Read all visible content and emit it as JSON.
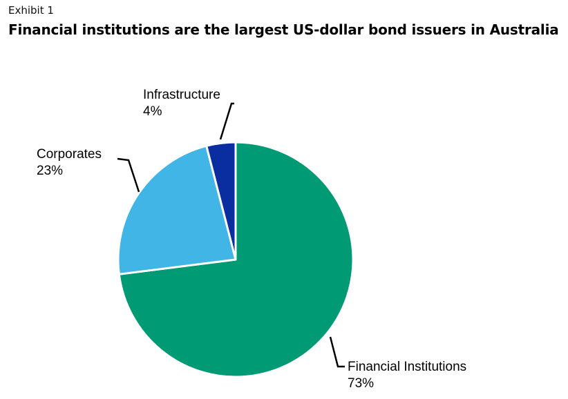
{
  "header": {
    "exhibit": "Exhibit 1",
    "title": "Financial institutions are the largest US-dollar bond issuers in Australia"
  },
  "chart_data": {
    "type": "pie",
    "title": "Financial institutions are the largest US-dollar bond issuers in Australia",
    "start_angle_deg": 0,
    "direction": "clockwise",
    "slices": [
      {
        "label": "Financial Institutions",
        "value": 73,
        "value_label": "73%",
        "color": "#009a75"
      },
      {
        "label": "Corporates",
        "value": 23,
        "value_label": "23%",
        "color": "#41b6e6"
      },
      {
        "label": "Infrastructure",
        "value": 4,
        "value_label": "4%",
        "color": "#0a2ea0"
      }
    ],
    "slice_border_color": "#ffffff",
    "leader_line_color": "#000000"
  }
}
